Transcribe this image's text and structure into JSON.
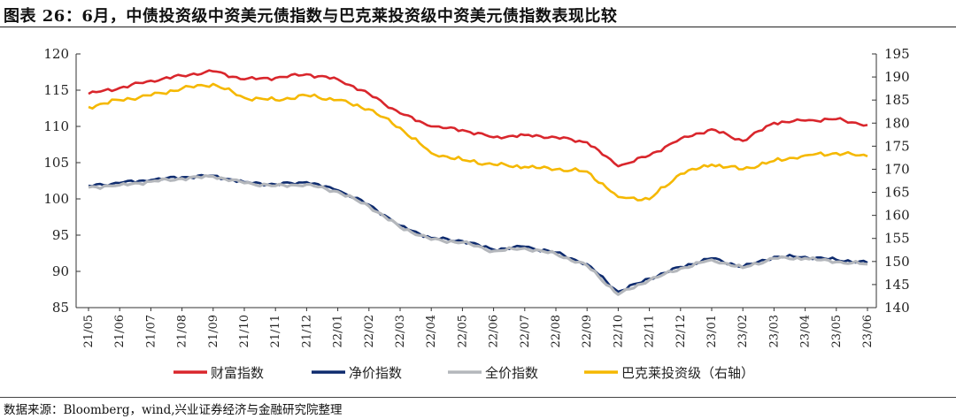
{
  "title": "图表 26：6月，中债投资级中资美元债指数与巴克莱投资级中资美元债指数表现比较",
  "source": "数据来源：Bloomberg，wind,兴业证券经济与金融研究院整理",
  "chart_data": {
    "type": "line",
    "title": "图表 26：6月，中债投资级中资美元债指数与巴克莱投资级中资美元债指数表现比较",
    "xlabel": "",
    "ylabel": "",
    "categories": [
      "21/05",
      "21/06",
      "21/07",
      "21/08",
      "21/09",
      "21/10",
      "21/11",
      "21/12",
      "22/01",
      "22/02",
      "22/03",
      "22/04",
      "22/05",
      "22/06",
      "22/07",
      "22/08",
      "22/09",
      "22/10",
      "22/11",
      "22/12",
      "23/01",
      "23/02",
      "23/03",
      "23/04",
      "23/05",
      "23/06"
    ],
    "ylim": [
      85,
      120
    ],
    "yticks": [
      85,
      90,
      95,
      100,
      105,
      110,
      115,
      120
    ],
    "y2lim": [
      140,
      195
    ],
    "y2ticks": [
      140,
      145,
      150,
      155,
      160,
      165,
      170,
      175,
      180,
      185,
      190,
      195
    ],
    "series": [
      {
        "name": "财富指数",
        "axis": "left",
        "color": "#d9262c",
        "values": [
          114.5,
          115.3,
          116.3,
          117.0,
          117.6,
          116.5,
          116.7,
          117.2,
          116.5,
          114.5,
          111.8,
          110.0,
          109.5,
          108.5,
          108.8,
          108.5,
          107.8,
          104.5,
          106.0,
          108.3,
          109.6,
          108.0,
          110.5,
          110.8,
          111.0,
          110.2
        ]
      },
      {
        "name": "净价指数",
        "axis": "left",
        "color": "#0e2b6e",
        "values": [
          101.8,
          102.2,
          102.6,
          103.0,
          103.2,
          102.3,
          102.0,
          102.3,
          101.2,
          99.2,
          96.3,
          94.6,
          94.2,
          93.0,
          93.4,
          92.6,
          91.0,
          87.2,
          89.0,
          90.6,
          91.8,
          90.6,
          92.0,
          92.0,
          91.6,
          91.2
        ]
      },
      {
        "name": "全价指数",
        "axis": "left",
        "color": "#b4b7bc",
        "values": [
          101.6,
          101.9,
          102.4,
          102.8,
          103.1,
          102.2,
          101.8,
          102.0,
          101.0,
          99.0,
          96.1,
          94.4,
          94.0,
          92.8,
          93.2,
          92.4,
          90.8,
          86.8,
          88.8,
          90.4,
          91.6,
          90.5,
          91.8,
          91.8,
          91.3,
          91.0
        ]
      },
      {
        "name": "巴克莱投资级（右轴）",
        "axis": "right",
        "color": "#f5b800",
        "values": [
          183.5,
          185.0,
          186.0,
          187.5,
          188.5,
          185.5,
          185.0,
          186.0,
          185.0,
          183.0,
          179.0,
          173.5,
          172.0,
          171.0,
          170.5,
          170.0,
          169.5,
          164.0,
          163.5,
          169.0,
          171.0,
          170.0,
          171.8,
          173.0,
          173.5,
          172.8
        ]
      }
    ],
    "legend": {
      "position": "bottom",
      "entries": [
        "财富指数",
        "净价指数",
        "全价指数",
        "巴克莱投资级（右轴）"
      ]
    }
  }
}
